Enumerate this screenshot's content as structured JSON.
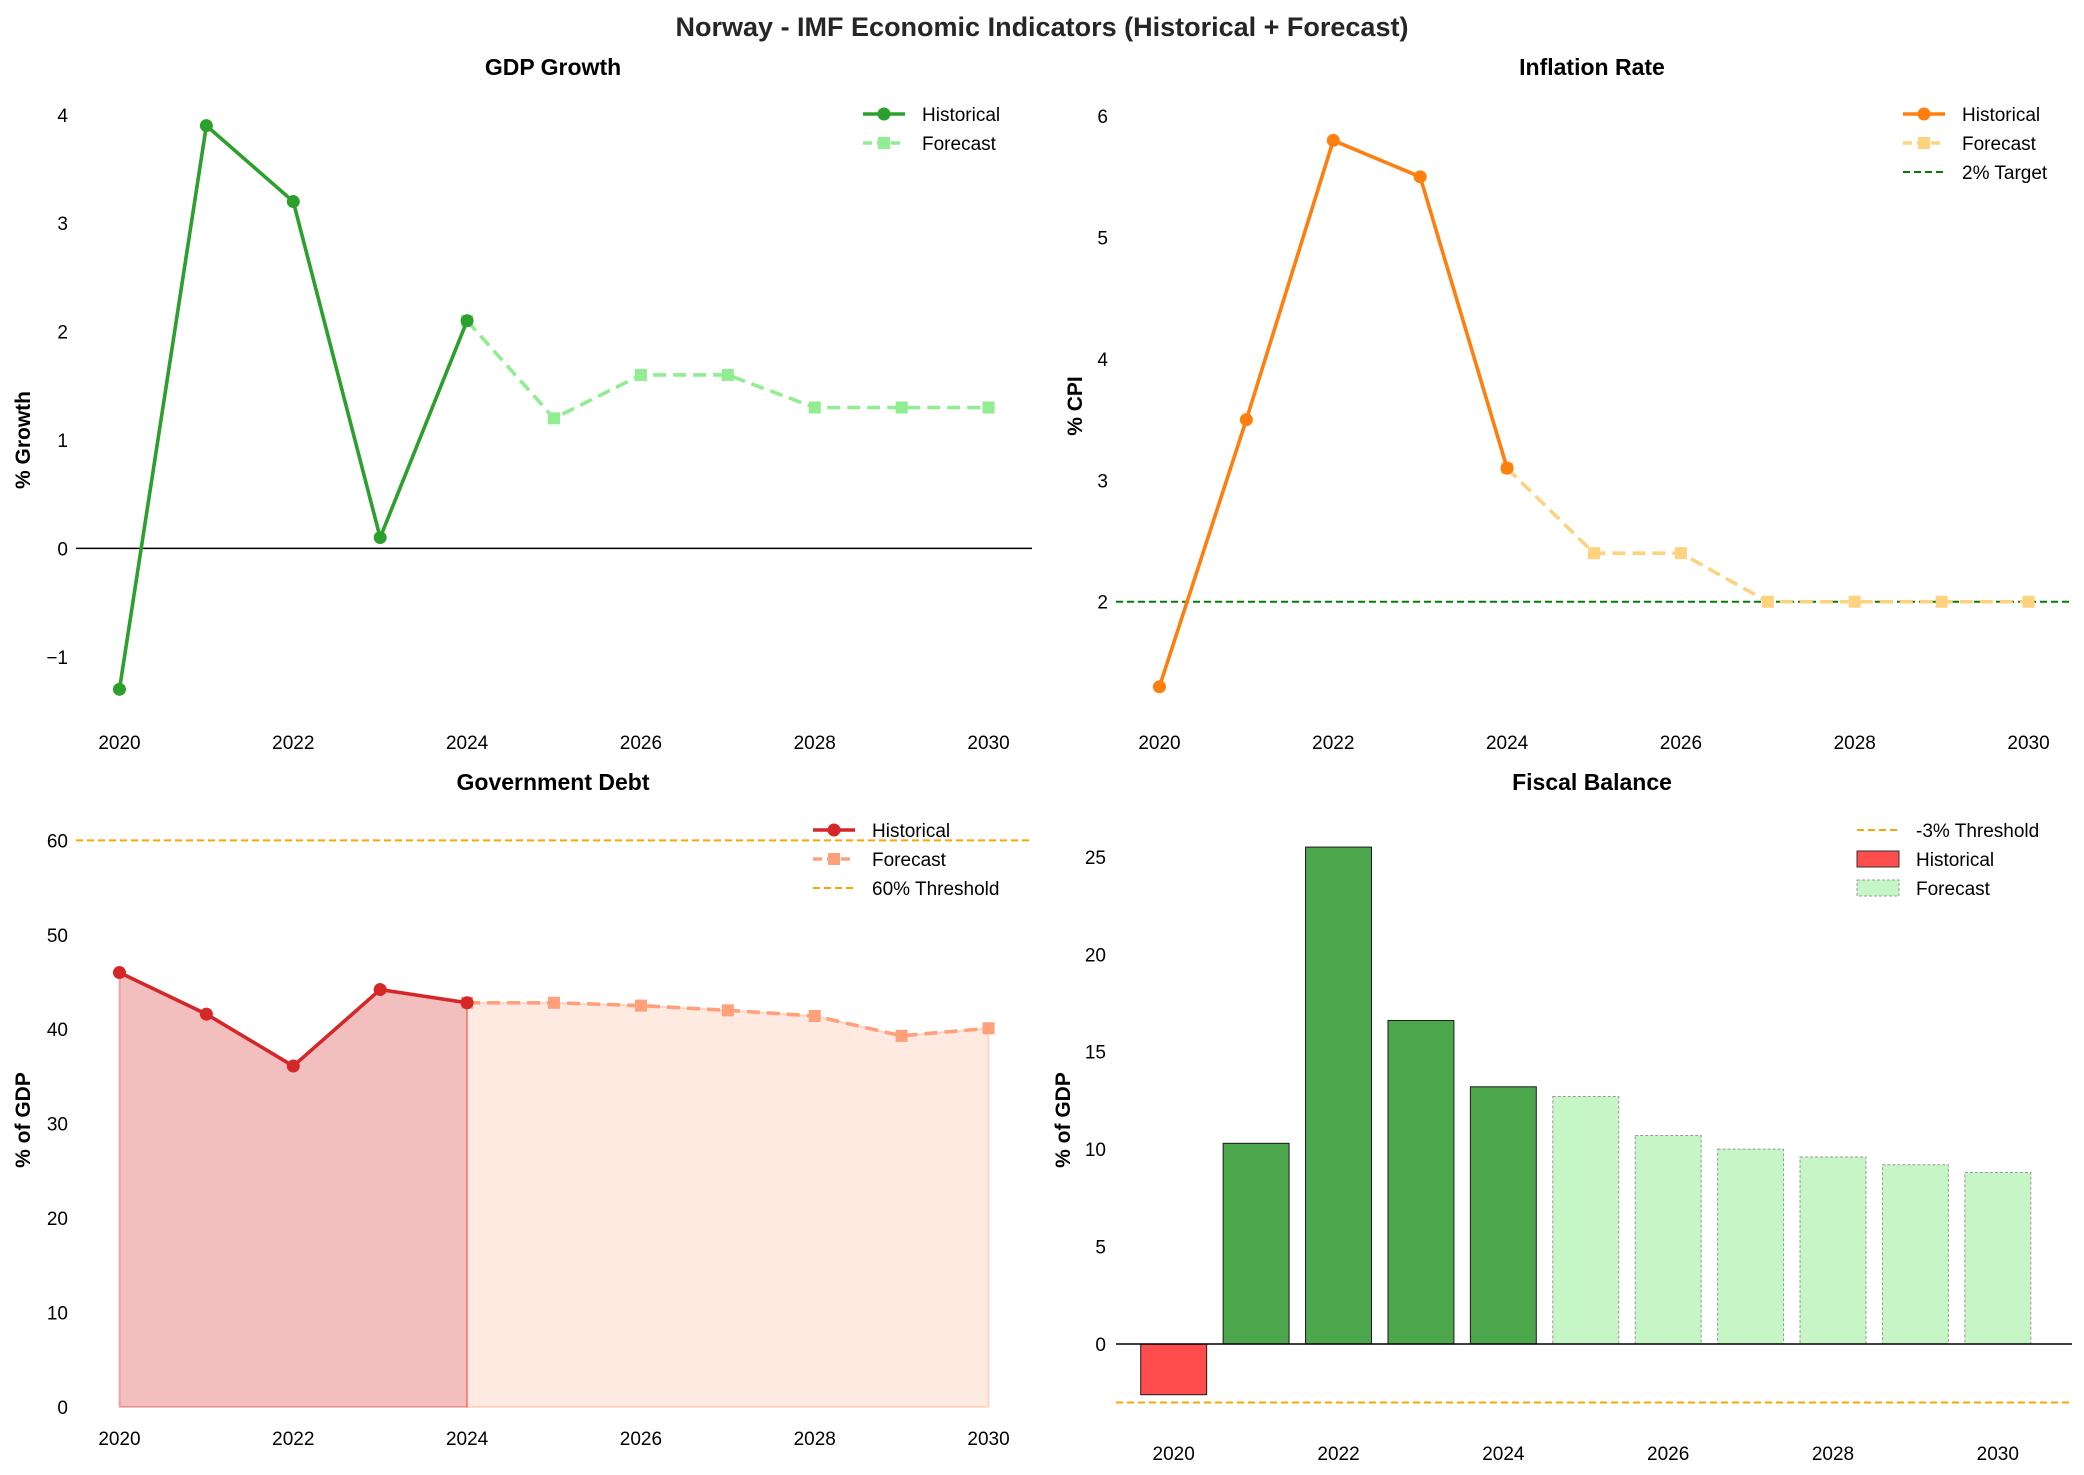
{
  "colors": {
    "gdp_hist": "#2ca02c",
    "gdp_fc": "#90ee90",
    "infl_hist": "#ff7f0e",
    "infl_fc": "#ffd27f",
    "target": "#008000",
    "debt_hist": "#d62728",
    "debt_fc": "#ffa07a",
    "threshold": "#ffa500",
    "bal_pos": "#4ca64c",
    "bal_neg": "#ff4c4c",
    "bal_fc": "#c6f5c6"
  },
  "chart_data": {
    "suptitle": "Norway - IMF Economic Indicators (Historical + Forecast)",
    "panels": [
      {
        "id": "gdp",
        "type": "line",
        "title": "GDP Growth",
        "ylabel": "% Growth",
        "xlim": [
          2019.5,
          2030.5
        ],
        "ylim": [
          -1.5,
          4.1
        ],
        "yticks": [
          -1,
          0,
          1,
          2,
          3,
          4
        ],
        "ytick_labels": [
          "−1",
          "0",
          "1",
          "2",
          "3",
          "4"
        ],
        "xticks": [
          2020,
          2022,
          2024,
          2026,
          2028,
          2030
        ],
        "zero_line": true,
        "historical": {
          "x": [
            2020,
            2021,
            2022,
            2023,
            2024
          ],
          "y": [
            -1.3,
            3.9,
            3.2,
            0.1,
            2.1
          ]
        },
        "forecast": {
          "x": [
            2024,
            2025,
            2026,
            2027,
            2028,
            2029,
            2030
          ],
          "y": [
            2.1,
            1.2,
            1.6,
            1.6,
            1.3,
            1.3,
            1.3
          ]
        },
        "legend": {
          "loc": "upper right",
          "historical": "Historical",
          "forecast": "Forecast"
        }
      },
      {
        "id": "inflation",
        "type": "line",
        "title": "Inflation Rate",
        "ylabel": "% CPI",
        "xlim": [
          2019.5,
          2030.5
        ],
        "ylim": [
          1.1,
          6.1
        ],
        "yticks": [
          2,
          3,
          4,
          5,
          6
        ],
        "ytick_labels": [
          "2",
          "3",
          "4",
          "5",
          "6"
        ],
        "xticks": [
          2020,
          2022,
          2024,
          2026,
          2028,
          2030
        ],
        "historical": {
          "x": [
            2020,
            2021,
            2022,
            2023,
            2024
          ],
          "y": [
            1.3,
            3.5,
            5.8,
            5.5,
            3.1
          ]
        },
        "forecast": {
          "x": [
            2024,
            2025,
            2026,
            2027,
            2028,
            2029,
            2030
          ],
          "y": [
            3.1,
            2.4,
            2.4,
            2.0,
            2.0,
            2.0,
            2.0
          ]
        },
        "reference_line": {
          "y": 2,
          "label": "2% Target"
        },
        "legend": {
          "loc": "upper right",
          "historical": "Historical",
          "forecast": "Forecast",
          "reference": "2% Target"
        }
      },
      {
        "id": "debt",
        "type": "area",
        "title": "Government Debt",
        "ylabel": "% of GDP",
        "xlim": [
          2019.5,
          2030.5
        ],
        "ylim": [
          0,
          63
        ],
        "yticks": [
          0,
          10,
          20,
          30,
          40,
          50,
          60
        ],
        "ytick_labels": [
          "0",
          "10",
          "20",
          "30",
          "40",
          "50",
          "60"
        ],
        "xticks": [
          2020,
          2022,
          2024,
          2026,
          2028,
          2030
        ],
        "historical": {
          "x": [
            2020,
            2021,
            2022,
            2023,
            2024
          ],
          "y": [
            46.0,
            41.6,
            36.1,
            44.2,
            42.8
          ]
        },
        "forecast": {
          "x": [
            2024,
            2025,
            2026,
            2027,
            2028,
            2029,
            2030
          ],
          "y": [
            42.8,
            42.8,
            42.5,
            42.0,
            41.4,
            39.3,
            40.1
          ]
        },
        "reference_line": {
          "y": 60,
          "label": "60% Threshold"
        },
        "legend": {
          "loc": "upper right",
          "historical": "Historical",
          "forecast": "Forecast",
          "reference": "60% Threshold"
        }
      },
      {
        "id": "balance",
        "type": "bar",
        "title": "Fiscal Balance",
        "ylabel": "% of GDP",
        "xlim": [
          2019.3,
          2030.9
        ],
        "ylim": [
          -4.0,
          27.3
        ],
        "yticks": [
          0,
          5,
          10,
          15,
          20,
          25
        ],
        "ytick_labels": [
          "0",
          "5",
          "10",
          "15",
          "20",
          "25"
        ],
        "xticks": [
          2020,
          2022,
          2024,
          2026,
          2028,
          2030
        ],
        "zero_line": true,
        "historical": {
          "x": [
            2020,
            2021,
            2022,
            2023,
            2024
          ],
          "y": [
            -2.6,
            10.3,
            25.5,
            16.6,
            13.2
          ]
        },
        "forecast": {
          "x": [
            2025,
            2026,
            2027,
            2028,
            2029,
            2030
          ],
          "y": [
            12.7,
            10.7,
            10.0,
            9.6,
            9.2,
            8.8
          ]
        },
        "reference_line": {
          "y": -3,
          "label": "-3% Threshold"
        },
        "legend": {
          "loc": "upper right",
          "historical": "Historical",
          "forecast": "Forecast",
          "reference": "-3% Threshold"
        }
      }
    ]
  }
}
